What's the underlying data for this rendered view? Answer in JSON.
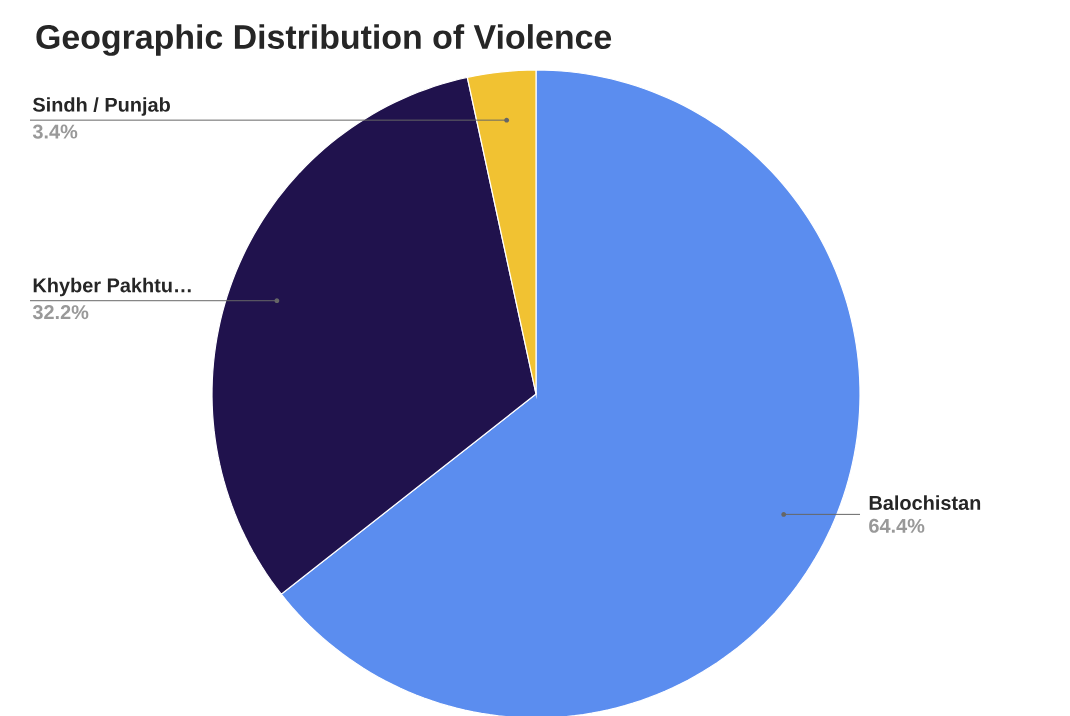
{
  "chart_data": {
    "type": "pie",
    "title": "Geographic Distribution of Violence",
    "categories": [
      "Balochistan",
      "Khyber Pakhtu…",
      "Sindh / Punjab"
    ],
    "values": [
      64.4,
      32.2,
      3.4
    ],
    "value_labels": [
      "64.4%",
      "32.2%",
      "3.4%"
    ],
    "colors": [
      "#5b8def",
      "#20124d",
      "#f1c232"
    ]
  }
}
